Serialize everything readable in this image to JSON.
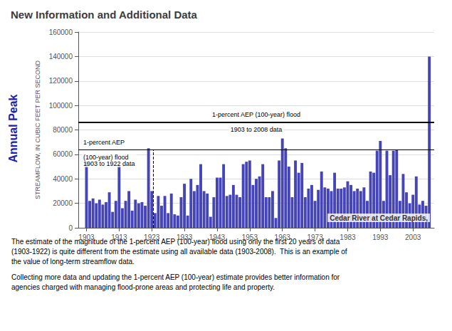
{
  "chart_data": {
    "type": "bar",
    "title": "New Information and Additional Data",
    "ylabel": "STREAMFLOW, IN CUBIC FEET PER SECOND",
    "side_label": "Annual Peak",
    "watermark": "Cedar River at Cedar Rapids,",
    "paragraphs": [
      "The estimate of the magnitude of the 1-percent AEP (100-year) flood using only the first 20 years of data\n(1903-1922) is quite different from the estimate using all available data (1903-2008).  This is an example of\nthe value of long-term streamflow data.",
      "Collecting more data and updating the 1-percent AEP (100-year) estimate provides better information for\nagencies charged with managing flood-prone areas and protecting life and property."
    ],
    "hlines": [
      {
        "y": 86500,
        "labels": [
          "1-percent AEP (100-year) flood",
          "1903 to 2008 data"
        ]
      },
      {
        "y": 64000,
        "labels": [
          "1-percent AEP",
          "(100-year) flood",
          "1903 to 1922 data"
        ]
      }
    ],
    "vline": {
      "x": 1923.5,
      "y": [
        0,
        64000
      ],
      "line_style": "dashed"
    },
    "x": [
      1903,
      1904,
      1905,
      1906,
      1907,
      1908,
      1909,
      1910,
      1911,
      1912,
      1913,
      1914,
      1915,
      1916,
      1917,
      1918,
      1919,
      1920,
      1921,
      1922,
      1923,
      1924,
      1925,
      1926,
      1927,
      1928,
      1929,
      1930,
      1931,
      1932,
      1933,
      1934,
      1935,
      1936,
      1937,
      1938,
      1939,
      1940,
      1941,
      1942,
      1943,
      1944,
      1945,
      1946,
      1947,
      1948,
      1949,
      1950,
      1951,
      1952,
      1953,
      1954,
      1955,
      1956,
      1957,
      1958,
      1959,
      1960,
      1961,
      1962,
      1963,
      1964,
      1965,
      1966,
      1967,
      1968,
      1969,
      1970,
      1971,
      1972,
      1973,
      1974,
      1975,
      1976,
      1977,
      1978,
      1979,
      1980,
      1981,
      1982,
      1983,
      1984,
      1985,
      1986,
      1987,
      1988,
      1989,
      1990,
      1991,
      1992,
      1993,
      1994,
      1995,
      1996,
      1997,
      1998,
      1999,
      2000,
      2001,
      2002,
      2003,
      2004,
      2005,
      2006,
      2007,
      2008
    ],
    "values": [
      54000,
      22000,
      24000,
      20000,
      23000,
      19000,
      21000,
      29000,
      13000,
      22000,
      51000,
      16000,
      22000,
      30000,
      14000,
      23000,
      20000,
      21000,
      18000,
      65000,
      30000,
      12000,
      26000,
      18000,
      26000,
      12000,
      28000,
      11000,
      10000,
      25000,
      36000,
      10000,
      40000,
      30000,
      35000,
      52000,
      30000,
      28000,
      9000,
      25000,
      41000,
      41000,
      52000,
      26000,
      27000,
      35000,
      27000,
      25000,
      52000,
      54000,
      55000,
      35000,
      40000,
      42000,
      52000,
      25000,
      25000,
      30000,
      8000,
      55000,
      73000,
      65000,
      50000,
      25000,
      55000,
      45000,
      53000,
      25000,
      32000,
      35000,
      22000,
      31000,
      46000,
      33000,
      32000,
      30000,
      45000,
      32000,
      32000,
      33000,
      38000,
      35000,
      30000,
      32000,
      30000,
      33000,
      22000,
      46000,
      45000,
      63000,
      71000,
      22000,
      63000,
      43000,
      63000,
      64000,
      22000,
      44000,
      29000,
      20000,
      27000,
      42000,
      19000,
      22000,
      18000,
      140000
    ],
    "color": "#4545b8",
    "xlim": [
      1900.5,
      2009.5
    ],
    "xticks": [
      1903,
      1913,
      1923,
      1933,
      1943,
      1953,
      1963,
      1973,
      1983,
      1993,
      2003
    ],
    "ylim": [
      0,
      160000
    ],
    "yticks": [
      0,
      20000,
      40000,
      60000,
      80000,
      100000,
      120000,
      140000,
      160000
    ],
    "grid": true
  }
}
